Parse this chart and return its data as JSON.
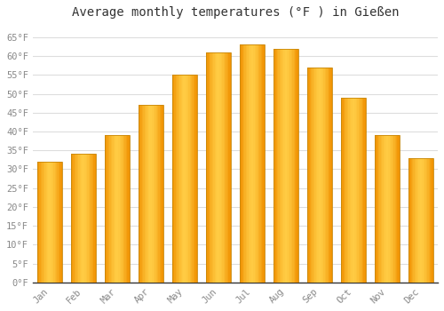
{
  "title": "Average monthly temperatures (°F ) in Gießen",
  "months": [
    "Jan",
    "Feb",
    "Mar",
    "Apr",
    "May",
    "Jun",
    "Jul",
    "Aug",
    "Sep",
    "Oct",
    "Nov",
    "Dec"
  ],
  "values": [
    32,
    34,
    39,
    47,
    55,
    61,
    63,
    62,
    57,
    49,
    39,
    33
  ],
  "bar_color_left": "#F5A800",
  "bar_color_center": "#FFCC44",
  "bar_color_right": "#F5A800",
  "bar_edge_color": "#C8880A",
  "ylim": [
    0,
    68
  ],
  "yticks": [
    0,
    5,
    10,
    15,
    20,
    25,
    30,
    35,
    40,
    45,
    50,
    55,
    60,
    65
  ],
  "ytick_labels": [
    "0°F",
    "5°F",
    "10°F",
    "15°F",
    "20°F",
    "25°F",
    "30°F",
    "35°F",
    "40°F",
    "45°F",
    "50°F",
    "55°F",
    "60°F",
    "65°F"
  ],
  "background_color": "#ffffff",
  "plot_bg_color": "#ffffff",
  "grid_color": "#dddddd",
  "title_fontsize": 10,
  "tick_fontsize": 7.5,
  "tick_color": "#888888",
  "font_family": "monospace",
  "bar_width": 0.75
}
